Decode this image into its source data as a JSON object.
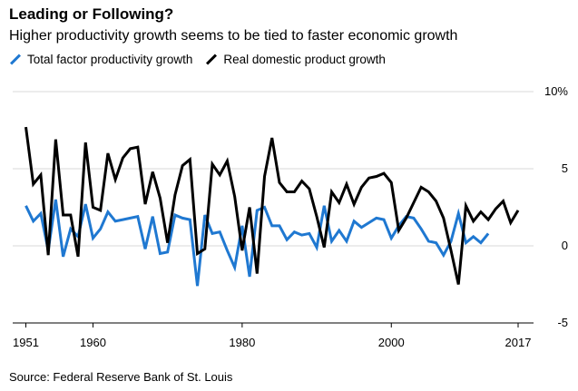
{
  "header": {
    "title": "Leading or Following?",
    "subtitle": "Higher productivity growth seems to be tied to faster economic growth"
  },
  "footer": {
    "source": "Source: Federal Reserve Bank of St. Louis"
  },
  "chart_data": {
    "type": "line",
    "title": "Leading or Following?",
    "subtitle": "Higher productivity growth seems to be tied to faster economic growth",
    "xlabel": "",
    "ylabel": "",
    "xlim": [
      1951,
      2017
    ],
    "ylim": [
      -5,
      10
    ],
    "x_ticks": [
      1951,
      1960,
      1980,
      2000,
      2017
    ],
    "y_ticks": [
      10,
      5,
      0,
      -5
    ],
    "y_tick_labels": [
      "10%",
      "5",
      "0",
      "-5"
    ],
    "grid": "horizontal",
    "legend_position": "top-left",
    "colors": {
      "tfp": "#1f78d1",
      "rdp": "#000000",
      "grid": "#d9d9d9"
    },
    "series": [
      {
        "name": "Total factor productivity growth",
        "color": "#1f78d1",
        "x": [
          1951,
          1952,
          1953,
          1954,
          1955,
          1956,
          1957,
          1958,
          1959,
          1960,
          1961,
          1962,
          1963,
          1964,
          1965,
          1966,
          1967,
          1968,
          1969,
          1970,
          1971,
          1972,
          1973,
          1974,
          1975,
          1976,
          1977,
          1978,
          1979,
          1980,
          1981,
          1982,
          1983,
          1984,
          1985,
          1986,
          1987,
          1988,
          1989,
          1990,
          1991,
          1992,
          1993,
          1994,
          1995,
          1996,
          1997,
          1998,
          1999,
          2000,
          2001,
          2002,
          2003,
          2004,
          2005,
          2006,
          2007,
          2008,
          2009,
          2010,
          2011,
          2012,
          2013,
          2014
        ],
        "values": [
          2.6,
          1.6,
          2.1,
          -0.3,
          3.0,
          -0.7,
          1.1,
          0.6,
          2.7,
          0.5,
          1.1,
          2.2,
          1.6,
          1.7,
          1.8,
          1.9,
          -0.2,
          1.9,
          -0.5,
          -0.4,
          2.0,
          1.8,
          1.7,
          -2.6,
          2.0,
          0.8,
          0.9,
          -0.3,
          -1.4,
          1.3,
          -2.0,
          2.3,
          2.5,
          1.3,
          1.3,
          0.4,
          0.9,
          0.7,
          0.8,
          -0.1,
          2.6,
          0.3,
          1.0,
          0.3,
          1.6,
          1.2,
          1.5,
          1.8,
          1.7,
          0.5,
          1.3,
          1.9,
          1.8,
          1.1,
          0.3,
          0.2,
          -0.6,
          0.3,
          2.1,
          0.2,
          0.6,
          0.2,
          0.8,
          null
        ]
      },
      {
        "name": "Real domestic product growth",
        "color": "#000000",
        "x": [
          1951,
          1952,
          1953,
          1954,
          1955,
          1956,
          1957,
          1958,
          1959,
          1960,
          1961,
          1962,
          1963,
          1964,
          1965,
          1966,
          1967,
          1968,
          1969,
          1970,
          1971,
          1972,
          1973,
          1974,
          1975,
          1976,
          1977,
          1978,
          1979,
          1980,
          1981,
          1982,
          1983,
          1984,
          1985,
          1986,
          1987,
          1988,
          1989,
          1990,
          1991,
          1992,
          1993,
          1994,
          1995,
          1996,
          1997,
          1998,
          1999,
          2000,
          2001,
          2002,
          2003,
          2004,
          2005,
          2006,
          2007,
          2008,
          2009,
          2010,
          2011,
          2012,
          2013,
          2014,
          2015,
          2016,
          2017
        ],
        "values": [
          7.7,
          4.0,
          4.6,
          -0.6,
          6.9,
          2.0,
          2.0,
          -0.7,
          6.7,
          2.5,
          2.3,
          6.0,
          4.3,
          5.7,
          6.3,
          6.4,
          2.7,
          4.8,
          3.1,
          0.2,
          3.3,
          5.2,
          5.6,
          -0.5,
          -0.2,
          5.3,
          4.6,
          5.5,
          3.2,
          -0.3,
          2.5,
          -1.8,
          4.5,
          7.0,
          4.1,
          3.5,
          3.5,
          4.2,
          3.7,
          1.9,
          -0.1,
          3.5,
          2.8,
          4.0,
          2.7,
          3.8,
          4.4,
          4.5,
          4.7,
          4.1,
          1.0,
          1.8,
          2.8,
          3.8,
          3.5,
          2.9,
          1.8,
          -0.3,
          -2.5,
          2.6,
          1.6,
          2.2,
          1.7,
          2.4,
          2.9,
          1.5,
          2.3
        ]
      }
    ]
  }
}
